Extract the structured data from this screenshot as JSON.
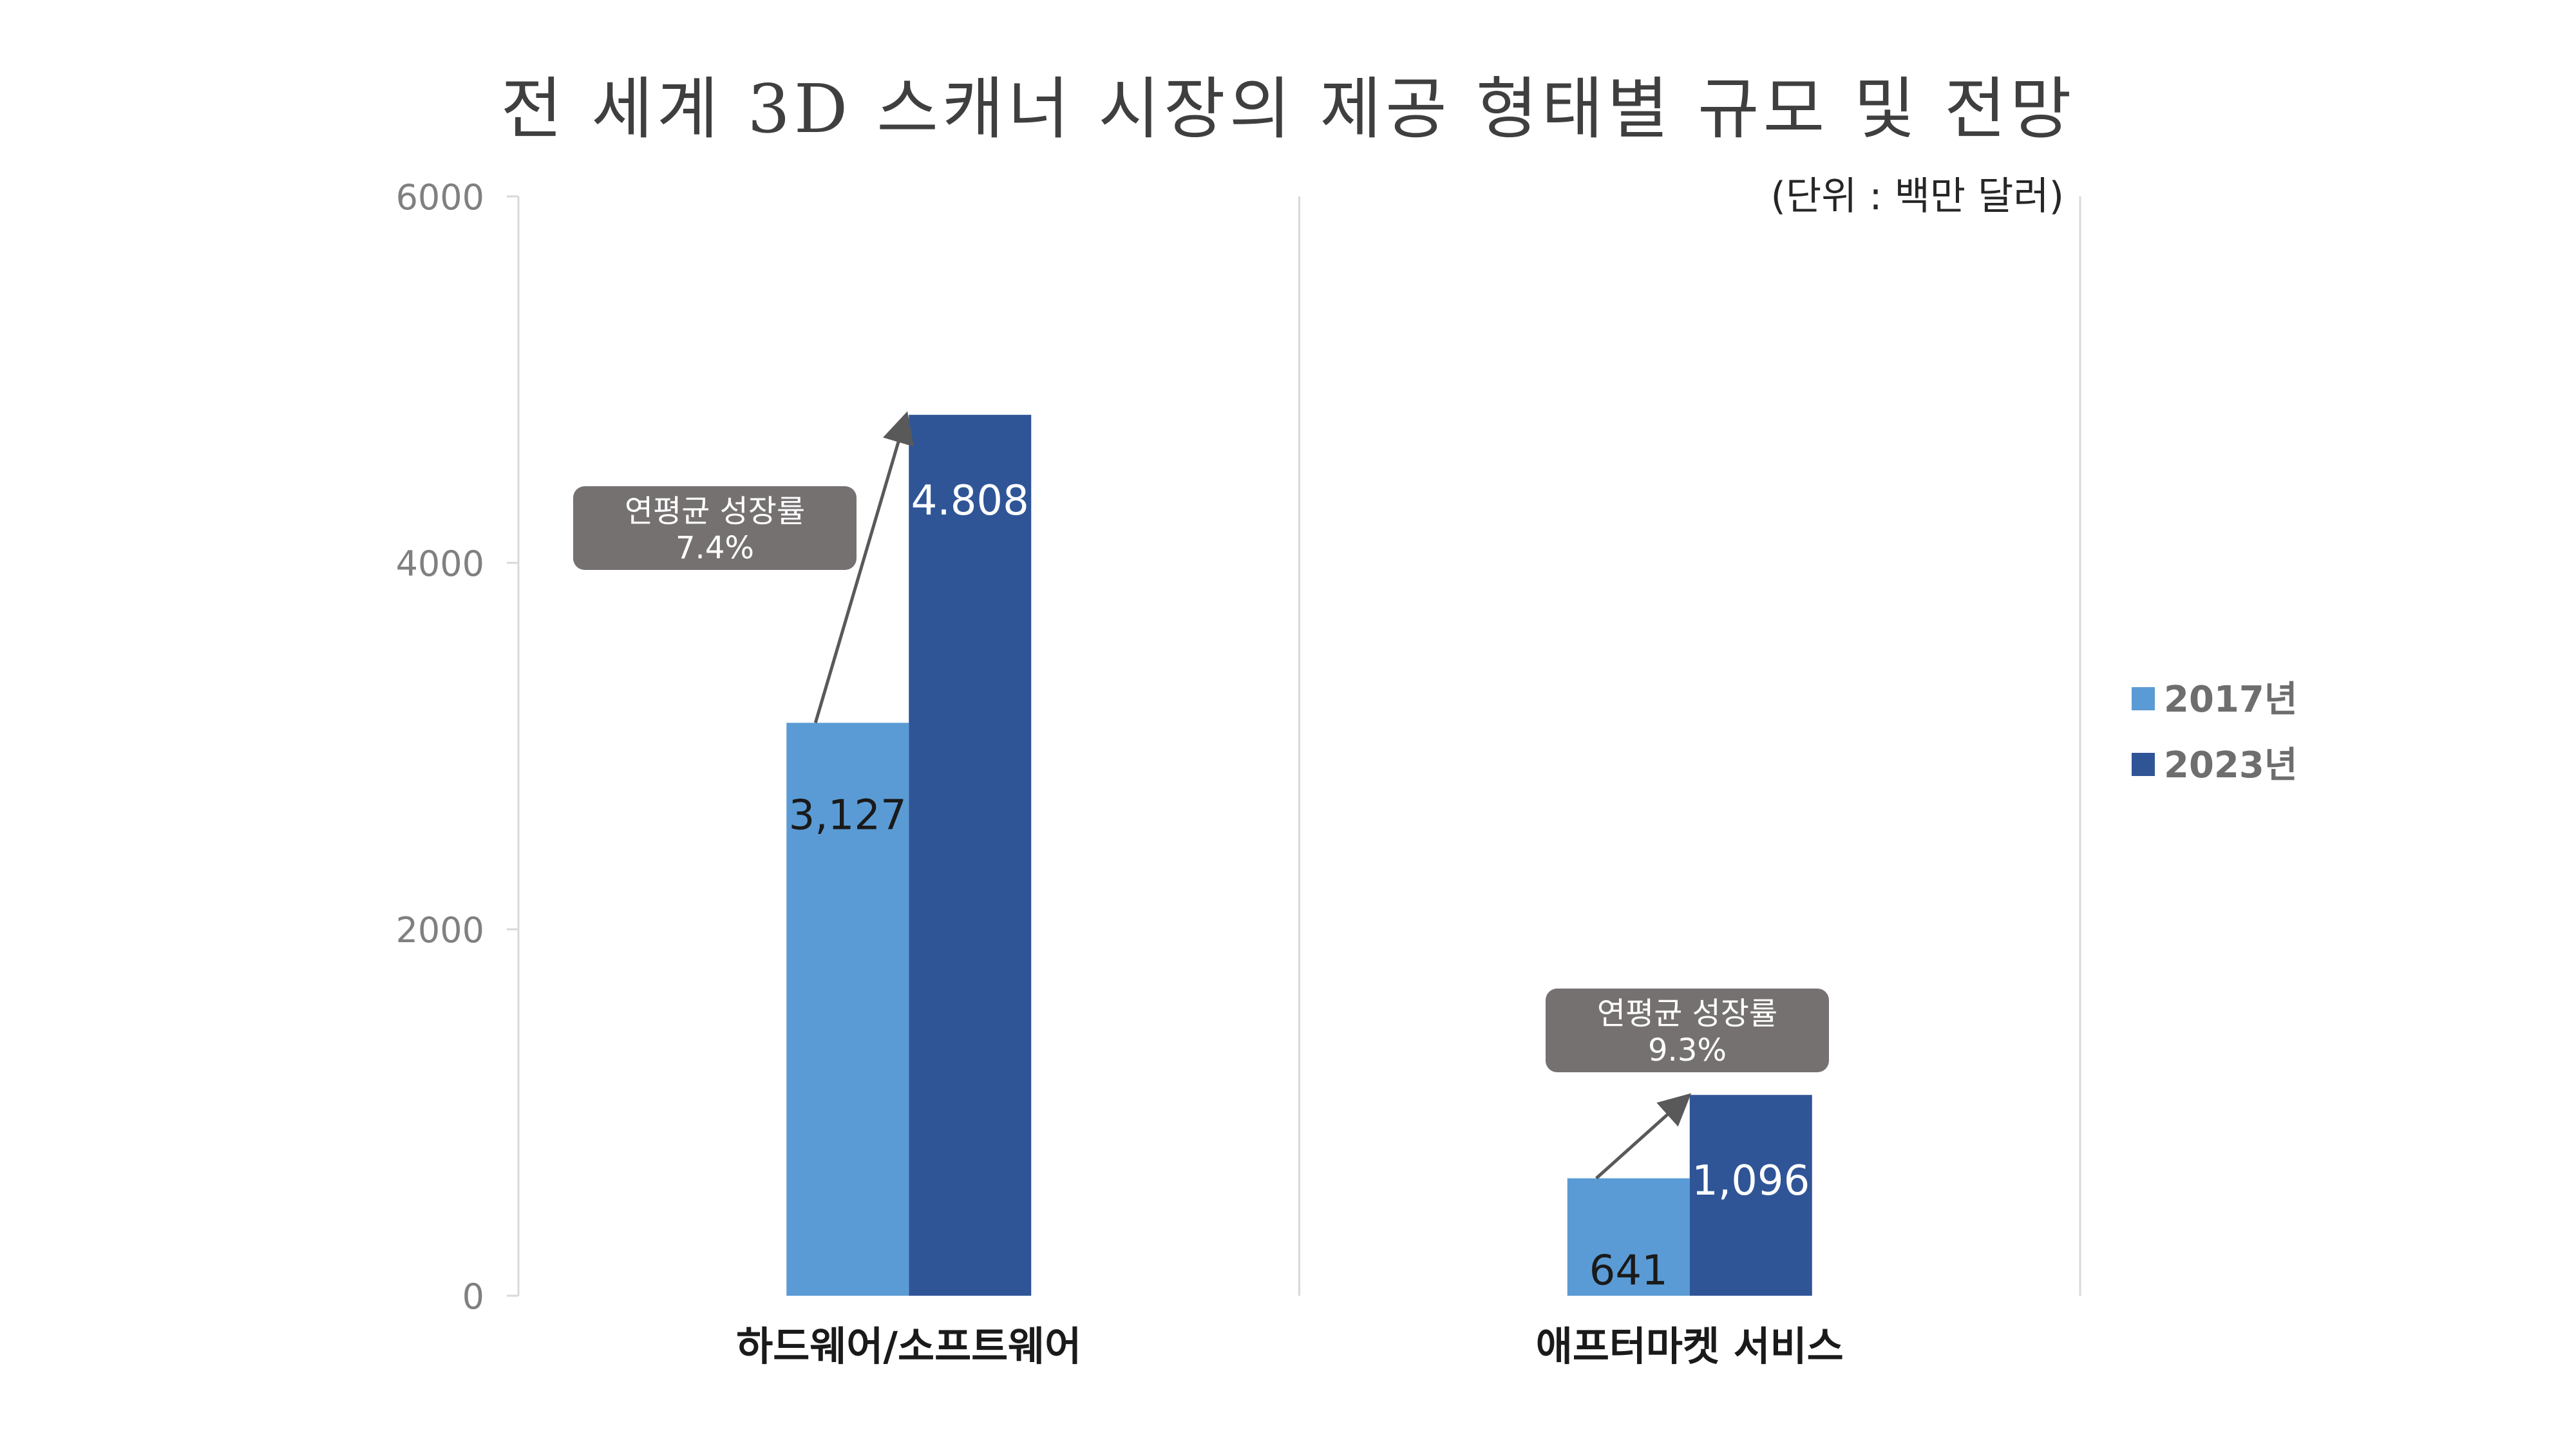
{
  "chart_data": {
    "type": "bar",
    "title": "전 세계 3D 스캐너 시장의 제공 형태별 규모 및 전망",
    "unit_note": "(단위 : 백만 달러)",
    "categories": [
      "하드웨어/소프트웨어",
      "애프터마켓 서비스"
    ],
    "series": [
      {
        "name": "2017년",
        "color": "#5b9bd5",
        "label_color": "#1a1a1a",
        "values": [
          3127,
          641
        ],
        "labels": [
          "3,127",
          "641"
        ]
      },
      {
        "name": "2023년",
        "color": "#2f5597",
        "label_color": "#ffffff",
        "values": [
          4808,
          1096
        ],
        "labels": [
          "4.808",
          "1,096"
        ]
      }
    ],
    "ylim": [
      0,
      6000
    ],
    "yticks": [
      0,
      2000,
      4000,
      6000
    ],
    "ytick_labels": [
      "0",
      "2000",
      "4000",
      "6000"
    ],
    "grid": "vertical category separators",
    "legend_position": "right",
    "annotations": [
      {
        "category_index": 0,
        "line1": "연평균 성장률",
        "line2": "7.4%"
      },
      {
        "category_index": 1,
        "line1": "연평균 성장률",
        "line2": "9.3%"
      }
    ],
    "annotation_color": "#767171",
    "axis_color": "#d9d9d9"
  }
}
